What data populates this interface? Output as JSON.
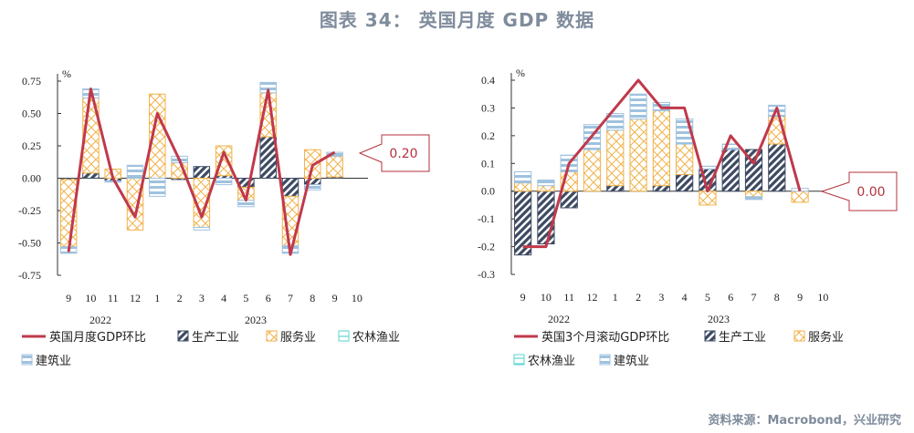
{
  "title": "图表 34： 英国月度 GDP 数据",
  "source": "资料来源：Macrobond，兴业研究",
  "colors": {
    "line": "#c0394b",
    "industry": "#3d4a62",
    "services": "#f0b24a",
    "agriculture": "#5dd6cf",
    "construction": "#9fc2df",
    "callout": "#b4323c"
  },
  "chart_data": [
    {
      "type": "bar",
      "stacked": true,
      "categories": [
        "9",
        "10",
        "11",
        "12",
        "1",
        "2",
        "3",
        "4",
        "5",
        "6",
        "7",
        "8",
        "9",
        "10"
      ],
      "year_labels": [
        "2022",
        "2023"
      ],
      "y_unit": "%",
      "ylim": [
        -0.75,
        0.75
      ],
      "yticks": [
        "0.75",
        "0.50",
        "0.25",
        "0.00",
        "-0.25",
        "-0.50",
        "-0.75"
      ],
      "ytick_values": [
        0.75,
        0.5,
        0.25,
        0,
        -0.25,
        -0.5,
        -0.75
      ],
      "callout": "0.20",
      "series": [
        {
          "name": "英国月度GDP环比",
          "kind": "line",
          "values": [
            -0.57,
            0.69,
            0.0,
            -0.3,
            0.5,
            0.14,
            -0.3,
            0.2,
            -0.17,
            0.68,
            -0.59,
            0.1,
            0.2,
            null
          ]
        },
        {
          "name": "生产工业",
          "kind": "bar",
          "values": [
            -0.01,
            0.04,
            -0.02,
            0.0,
            0.0,
            -0.01,
            0.09,
            0.02,
            -0.07,
            0.32,
            -0.14,
            -0.05,
            0.01,
            null
          ]
        },
        {
          "name": "服务业",
          "kind": "bar",
          "values": [
            -0.52,
            0.58,
            0.07,
            -0.4,
            0.65,
            0.12,
            -0.38,
            0.23,
            -0.1,
            0.34,
            -0.38,
            0.22,
            0.16,
            null
          ]
        },
        {
          "name": "农林渔业",
          "kind": "bar",
          "values": [
            0.0,
            0.0,
            0.0,
            0.0,
            0.0,
            0.0,
            0.0,
            0.0,
            0.0,
            0.0,
            0.0,
            0.0,
            0.0,
            null
          ]
        },
        {
          "name": "建筑业",
          "kind": "bar",
          "values": [
            -0.05,
            0.07,
            -0.01,
            0.1,
            -0.14,
            0.05,
            -0.02,
            -0.05,
            -0.05,
            0.08,
            -0.06,
            -0.04,
            0.03,
            null
          ]
        }
      ]
    },
    {
      "type": "bar",
      "stacked": true,
      "categories": [
        "9",
        "10",
        "11",
        "12",
        "1",
        "2",
        "3",
        "4",
        "5",
        "6",
        "7",
        "8",
        "9",
        "10"
      ],
      "year_labels": [
        "2022",
        "2023"
      ],
      "y_unit": "%",
      "ylim": [
        -0.3,
        0.4
      ],
      "yticks": [
        "0.4",
        "0.3",
        "0.2",
        "0.1",
        "0.0",
        "-0.1",
        "-0.2",
        "-0.3"
      ],
      "ytick_values": [
        0.4,
        0.3,
        0.2,
        0.1,
        0,
        -0.1,
        -0.2,
        -0.3
      ],
      "callout": "0.00",
      "series": [
        {
          "name": "英国3个月滚动GDP环比",
          "kind": "line",
          "values": [
            -0.2,
            -0.2,
            0.1,
            0.2,
            0.3,
            0.4,
            0.3,
            0.3,
            0.0,
            0.2,
            0.1,
            0.3,
            0.0,
            null
          ]
        },
        {
          "name": "生产工业",
          "kind": "bar",
          "values": [
            -0.23,
            -0.19,
            -0.06,
            0.0,
            0.02,
            0.0,
            0.02,
            0.06,
            0.08,
            0.15,
            0.15,
            0.17,
            0.0,
            null
          ]
        },
        {
          "name": "服务业",
          "kind": "bar",
          "values": [
            0.03,
            0.02,
            0.07,
            0.15,
            0.2,
            0.26,
            0.27,
            0.11,
            -0.05,
            0.0,
            -0.02,
            0.1,
            -0.04,
            null
          ]
        },
        {
          "name": "农林渔业",
          "kind": "bar",
          "values": [
            0.0,
            0.0,
            0.0,
            0.0,
            0.0,
            0.0,
            0.0,
            0.0,
            0.0,
            0.0,
            0.0,
            0.0,
            0.0,
            null
          ]
        },
        {
          "name": "建筑业",
          "kind": "bar",
          "values": [
            0.04,
            0.02,
            0.06,
            0.09,
            0.06,
            0.09,
            0.03,
            0.09,
            0.01,
            0.02,
            -0.01,
            0.04,
            0.01,
            null
          ]
        }
      ]
    }
  ]
}
